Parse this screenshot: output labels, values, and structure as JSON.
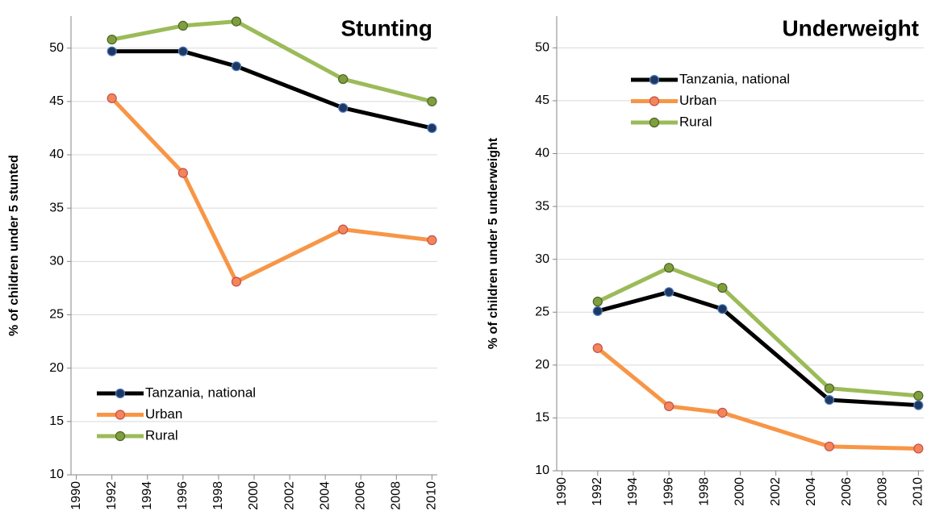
{
  "chart_data": [
    {
      "type": "line",
      "title": "Stunting",
      "y_label": "% of children under 5 stunted",
      "x": [
        1992,
        1996,
        1999,
        2005,
        2010
      ],
      "xlim": [
        1989.7,
        2010.3
      ],
      "xticks": [
        1990,
        1992,
        1994,
        1996,
        1998,
        2000,
        2002,
        2004,
        2006,
        2008,
        2010
      ],
      "ylim": [
        10,
        53
      ],
      "yticks": [
        10,
        15,
        20,
        25,
        30,
        35,
        40,
        45,
        50
      ],
      "grid": true,
      "legend": "lower left",
      "series": [
        {
          "name": "Tanzania, national",
          "color": "#000000",
          "marker_color": "#1f3864",
          "values": [
            49.7,
            49.7,
            48.3,
            44.4,
            42.5
          ]
        },
        {
          "name": "Urban",
          "color": "#f79646",
          "marker_color": "#f4845a",
          "values": [
            45.3,
            38.3,
            28.1,
            33.0,
            32.0
          ]
        },
        {
          "name": "Rural",
          "color": "#9bbb59",
          "marker_color": "#7f9f3f",
          "values": [
            50.8,
            52.1,
            52.5,
            47.1,
            45.0
          ]
        }
      ]
    },
    {
      "type": "line",
      "title": "Underweight",
      "y_label": "% of children under 5 underweight",
      "x": [
        1992,
        1996,
        1999,
        2005,
        2010
      ],
      "xlim": [
        1989.7,
        2010.3
      ],
      "xticks": [
        1990,
        1992,
        1994,
        1996,
        1998,
        2000,
        2002,
        2004,
        2006,
        2008,
        2010
      ],
      "ylim": [
        10,
        53
      ],
      "yticks": [
        10,
        15,
        20,
        25,
        30,
        35,
        40,
        45,
        50
      ],
      "grid": true,
      "legend": "upper left",
      "series": [
        {
          "name": "Tanzania, national",
          "color": "#000000",
          "marker_color": "#1f3864",
          "values": [
            25.1,
            26.9,
            25.3,
            16.7,
            16.2
          ]
        },
        {
          "name": "Urban",
          "color": "#f79646",
          "marker_color": "#f4845a",
          "values": [
            21.6,
            16.1,
            15.5,
            12.3,
            12.1
          ]
        },
        {
          "name": "Rural",
          "color": "#9bbb59",
          "marker_color": "#7f9f3f",
          "values": [
            26.0,
            29.2,
            27.3,
            17.8,
            17.1
          ]
        }
      ]
    }
  ]
}
